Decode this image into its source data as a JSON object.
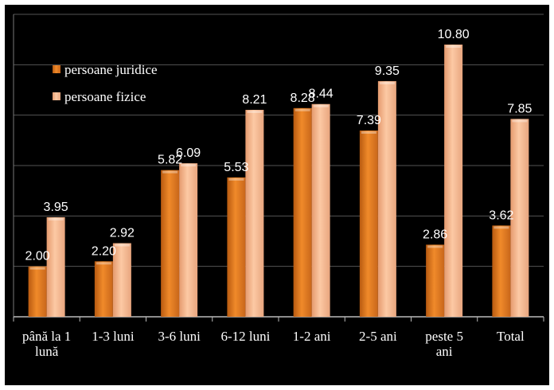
{
  "chart_data": {
    "type": "bar",
    "categories": [
      "până la 1 lună",
      "1-3 luni",
      "3-6 luni",
      "6-12 luni",
      "1-2 ani",
      "2-5 ani",
      "peste 5 ani",
      "Total"
    ],
    "category_lines": [
      [
        "până la 1",
        "lună"
      ],
      [
        "1-3 luni"
      ],
      [
        "3-6 luni"
      ],
      [
        "6-12 luni"
      ],
      [
        "1-2 ani"
      ],
      [
        "2-5 ani"
      ],
      [
        "peste 5",
        "ani"
      ],
      [
        "Total"
      ]
    ],
    "series": [
      {
        "name": "persoane juridice",
        "values": [
          2.0,
          2.2,
          5.82,
          5.53,
          8.28,
          7.39,
          2.86,
          3.62
        ],
        "labels": [
          "2.00",
          "2.20",
          "5.82",
          "5.53",
          "8.28",
          "7.39",
          "2.86",
          "3.62"
        ],
        "color": "#e07a1e"
      },
      {
        "name": "persoane fizice",
        "values": [
          3.95,
          2.92,
          6.09,
          8.21,
          8.44,
          9.35,
          10.8,
          7.85
        ],
        "labels": [
          "3.95",
          "2.92",
          "6.09",
          "8.21",
          "8.44",
          "9.35",
          "10.80",
          "7.85"
        ],
        "color": "#f7b48a"
      }
    ],
    "ylim": [
      0,
      12
    ],
    "grid": true,
    "legend_position": "top-left"
  }
}
